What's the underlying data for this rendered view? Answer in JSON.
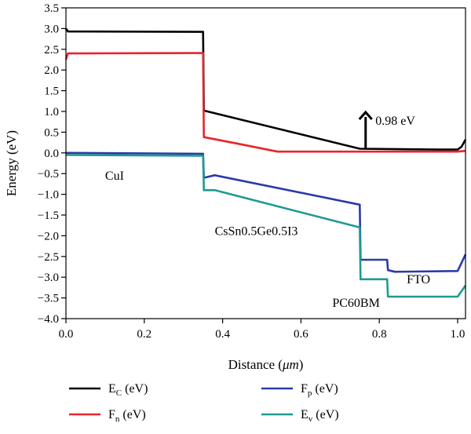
{
  "chart_data": {
    "type": "line",
    "xlabel_main": "Distance (",
    "xlabel_unit": "μm",
    "xlabel_close": ")",
    "ylabel": "Energy (eV)",
    "xlim": [
      0.0,
      1.02
    ],
    "ylim": [
      -4.0,
      3.5
    ],
    "x_ticks": [
      0.0,
      0.2,
      0.4,
      0.6,
      0.8,
      1.0
    ],
    "x_tick_labels": [
      "0.0",
      "0.2",
      "0.4",
      "0.6",
      "0.8",
      "1.0"
    ],
    "y_ticks": [
      3.5,
      3.0,
      2.5,
      2.0,
      1.5,
      1.0,
      0.5,
      0.0,
      -0.5,
      -1.0,
      -1.5,
      -2.0,
      -2.5,
      -3.0,
      -3.5,
      -4.0
    ],
    "y_tick_labels": [
      "3.5",
      "3.0",
      "2.5",
      "2.0",
      "1.5",
      "1.0",
      "0.5",
      "0.0",
      "−0.5",
      "−1.0",
      "−1.5",
      "−2.0",
      "−2.5",
      "−3.0",
      "−3.5",
      "−4.0"
    ],
    "grid": false,
    "series": [
      {
        "key": "ec",
        "name_main": "E",
        "name_sub": "C",
        "name_unit": " (eV)",
        "color": "#000000",
        "points": [
          [
            0.0,
            3.0
          ],
          [
            0.005,
            2.93
          ],
          [
            0.35,
            2.92
          ],
          [
            0.352,
            1.02
          ],
          [
            0.75,
            0.1
          ],
          [
            0.95,
            0.08
          ],
          [
            1.0,
            0.08
          ],
          [
            1.01,
            0.15
          ],
          [
            1.02,
            0.32
          ]
        ]
      },
      {
        "key": "fn",
        "name_main": "F",
        "name_sub": "n",
        "name_unit": " (eV)",
        "color": "#e8242a",
        "points": [
          [
            0.0,
            2.25
          ],
          [
            0.005,
            2.4
          ],
          [
            0.35,
            2.41
          ],
          [
            0.352,
            0.38
          ],
          [
            0.45,
            0.2
          ],
          [
            0.54,
            0.03
          ],
          [
            1.0,
            0.03
          ],
          [
            1.02,
            0.05
          ]
        ]
      },
      {
        "key": "fp",
        "name_main": "F",
        "name_sub": "p",
        "name_unit": " (eV)",
        "color": "#2b3aa8",
        "points": [
          [
            0.0,
            0.0
          ],
          [
            0.35,
            -0.02
          ],
          [
            0.352,
            -0.6
          ],
          [
            0.38,
            -0.54
          ],
          [
            0.75,
            -1.25
          ],
          [
            0.752,
            -2.58
          ],
          [
            0.82,
            -2.58
          ],
          [
            0.822,
            -2.83
          ],
          [
            0.84,
            -2.87
          ],
          [
            1.0,
            -2.85
          ],
          [
            1.02,
            -2.45
          ]
        ]
      },
      {
        "key": "ev",
        "name_main": "E",
        "name_sub": "v",
        "name_unit": " (eV)",
        "color": "#1e9b8f",
        "points": [
          [
            0.0,
            -0.05
          ],
          [
            0.35,
            -0.07
          ],
          [
            0.352,
            -0.9
          ],
          [
            0.38,
            -0.9
          ],
          [
            0.75,
            -1.8
          ],
          [
            0.752,
            -3.05
          ],
          [
            0.82,
            -3.05
          ],
          [
            0.822,
            -3.47
          ],
          [
            1.0,
            -3.47
          ],
          [
            1.02,
            -3.2
          ]
        ]
      }
    ],
    "annotations": [
      {
        "key": "cui",
        "text": "CuI",
        "x": 0.1,
        "y": -0.65
      },
      {
        "key": "perov",
        "text": "CsSn0.5Ge0.5I3",
        "x": 0.38,
        "y": -1.98
      },
      {
        "key": "fto",
        "text": "FTO",
        "x": 0.87,
        "y": -3.15
      },
      {
        "key": "pcbm",
        "text": "PC60BM",
        "x": 0.68,
        "y": -3.72
      },
      {
        "key": "gap",
        "text": "0.98 eV",
        "x": 0.79,
        "y": 0.68
      }
    ],
    "arrow": {
      "x": 0.765,
      "y_from": 0.08,
      "y_to": 0.98
    },
    "legend_position": "bottom"
  }
}
